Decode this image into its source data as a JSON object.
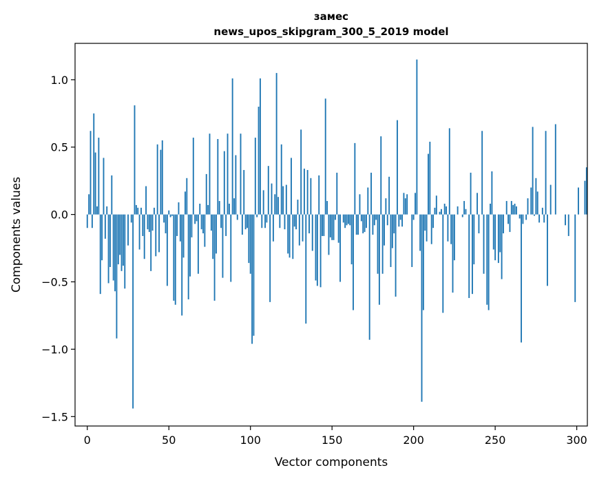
{
  "chart_data": {
    "type": "bar",
    "title_line1": "замес",
    "title_line2": "news_upos_skipgram_300_5_2019 model",
    "xlabel": "Vector components",
    "ylabel": "Components values",
    "xlim": [
      -7.5,
      306.5
    ],
    "ylim": [
      -1.57,
      1.27
    ],
    "xticks": [
      0,
      50,
      100,
      150,
      200,
      250,
      300
    ],
    "xtick_labels": [
      "0",
      "50",
      "100",
      "150",
      "200",
      "250",
      "300"
    ],
    "yticks": [
      -1.5,
      -1.0,
      -0.5,
      0.0,
      0.5,
      1.0
    ],
    "ytick_labels": [
      "−1.5",
      "−1.0",
      "−0.5",
      "0.0",
      "0.5",
      "1.0"
    ],
    "bar_color": "#1f77b4",
    "values": [
      -0.1,
      0.15,
      0.62,
      -0.1,
      0.75,
      0.46,
      0.06,
      0.57,
      -0.59,
      -0.34,
      0.42,
      -0.18,
      0.06,
      -0.51,
      -0.39,
      0.29,
      -0.49,
      -0.57,
      -0.92,
      -0.37,
      -0.3,
      -0.42,
      -0.38,
      -0.55,
      0.0,
      -0.23,
      0.0,
      -0.06,
      -1.44,
      0.81,
      0.07,
      0.05,
      -0.26,
      0.05,
      -0.16,
      -0.33,
      0.21,
      -0.11,
      -0.13,
      -0.42,
      -0.12,
      0.05,
      -0.31,
      0.52,
      -0.28,
      0.48,
      0.55,
      -0.06,
      -0.14,
      -0.53,
      0.03,
      -0.02,
      -0.01,
      -0.64,
      -0.67,
      -0.16,
      0.09,
      -0.2,
      -0.75,
      -0.32,
      0.17,
      0.27,
      -0.63,
      -0.46,
      -0.17,
      0.57,
      -0.07,
      -0.05,
      -0.44,
      0.08,
      -0.11,
      -0.14,
      -0.24,
      0.3,
      0.07,
      0.6,
      -0.12,
      -0.33,
      -0.64,
      -0.29,
      0.56,
      0.1,
      -0.1,
      -0.47,
      0.47,
      -0.16,
      0.6,
      0.08,
      -0.5,
      1.01,
      0.12,
      0.44,
      -0.04,
      0.0,
      0.6,
      -0.15,
      0.33,
      -0.11,
      -0.1,
      -0.36,
      -0.44,
      -0.96,
      -0.9,
      0.57,
      -0.02,
      0.8,
      1.01,
      -0.1,
      0.18,
      -0.1,
      -0.06,
      0.36,
      -0.65,
      0.23,
      -0.2,
      0.15,
      1.05,
      0.13,
      -0.1,
      0.52,
      0.21,
      -0.11,
      0.22,
      -0.29,
      -0.32,
      0.42,
      -0.33,
      -0.09,
      -0.11,
      0.11,
      -0.23,
      0.63,
      -0.2,
      0.34,
      -0.81,
      0.33,
      -0.14,
      0.27,
      -0.27,
      0.0,
      -0.49,
      -0.53,
      0.29,
      -0.54,
      -0.16,
      -0.16,
      0.86,
      0.1,
      -0.3,
      -0.17,
      -0.19,
      -0.19,
      -0.04,
      0.31,
      -0.21,
      -0.5,
      0.0,
      -0.06,
      -0.1,
      -0.08,
      -0.07,
      -0.08,
      -0.37,
      -0.71,
      0.53,
      -0.15,
      -0.15,
      0.15,
      -0.05,
      -0.14,
      -0.13,
      -0.1,
      0.2,
      -0.93,
      0.31,
      -0.15,
      -0.08,
      -0.04,
      -0.44,
      -0.67,
      0.58,
      -0.44,
      -0.23,
      0.12,
      -0.08,
      0.28,
      -0.39,
      -0.25,
      -0.14,
      -0.61,
      0.7,
      -0.09,
      -0.04,
      -0.09,
      0.16,
      0.12,
      0.15,
      0.0,
      0.0,
      -0.39,
      -0.04,
      0.16,
      1.15,
      0.0,
      -0.27,
      -1.39,
      -0.71,
      -0.12,
      -0.2,
      0.45,
      0.54,
      -0.22,
      -0.1,
      0.05,
      0.14,
      0.0,
      0.02,
      0.04,
      -0.73,
      0.08,
      0.06,
      -0.2,
      0.64,
      -0.22,
      -0.58,
      -0.34,
      0.0,
      0.06,
      0.0,
      0.0,
      -0.02,
      0.1,
      0.04,
      0.0,
      -0.62,
      0.31,
      -0.59,
      -0.37,
      0.0,
      0.16,
      -0.14,
      0.0,
      0.62,
      -0.44,
      0.0,
      -0.67,
      -0.71,
      0.08,
      0.32,
      -0.26,
      -0.34,
      0.0,
      -0.36,
      -0.28,
      -0.48,
      -0.14,
      0.0,
      0.1,
      -0.07,
      -0.13,
      0.1,
      0.07,
      0.08,
      0.06,
      0.0,
      -0.03,
      -0.95,
      -0.07,
      0.0,
      -0.04,
      0.12,
      0.0,
      0.2,
      0.65,
      -0.01,
      0.27,
      0.17,
      -0.06,
      0.0,
      0.05,
      -0.06,
      0.62,
      -0.53,
      0.0,
      0.22,
      0.0,
      0.0,
      0.67,
      0.0,
      0.0,
      0.0,
      0.0,
      0.0,
      -0.08,
      0.0,
      -0.16,
      0.0,
      0.0,
      0.0,
      -0.65,
      0.0,
      0.2,
      0.0,
      0.0,
      0.0,
      0.25,
      0.35
    ]
  }
}
